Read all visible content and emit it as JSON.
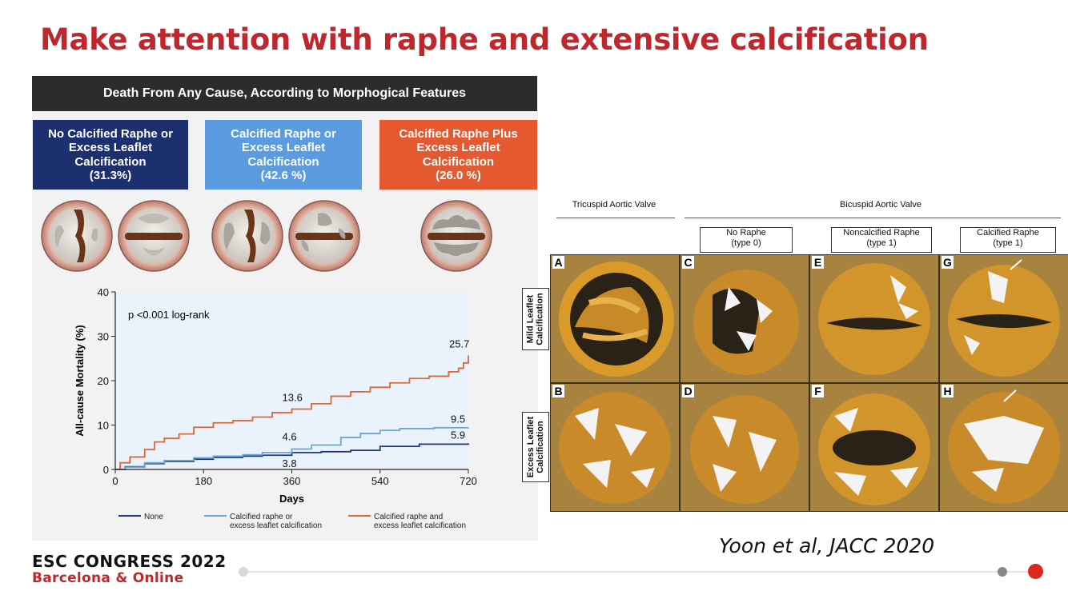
{
  "slide": {
    "title": "Make attention with raphe and extensive calcification",
    "citation": "Yoon et al, JACC 2020",
    "congress_name": "ESC CONGRESS 2022",
    "congress_location": "Barcelona & Online"
  },
  "panel": {
    "header": "Death From Any Cause, According to Morphogical Features",
    "categories": [
      {
        "lines": [
          "No Calcified Raphe or",
          "Excess Leaflet",
          "Calcification",
          "(31.3%)"
        ],
        "color": "#1c2f6e"
      },
      {
        "lines": [
          "Calcified Raphe or",
          "Excess Leaflet",
          "Calcification",
          "(42.6 %)"
        ],
        "color": "#5b9be0"
      },
      {
        "lines": [
          "Calcified Raphe Plus",
          "Excess Leaflet",
          "Calcification",
          "(26.0 %)"
        ],
        "color": "#e4592f"
      }
    ]
  },
  "chart_data": {
    "type": "line",
    "title": "",
    "annotation": "p <0.001 log-rank",
    "xlabel": "Days",
    "ylabel": "All-cause Mortality (%)",
    "xlim": [
      0,
      720
    ],
    "ylim": [
      0,
      40
    ],
    "xticks": [
      0,
      180,
      360,
      540,
      720
    ],
    "yticks": [
      0,
      10,
      20,
      30,
      40
    ],
    "series": [
      {
        "name": "None",
        "color": "#1f3a7a",
        "x": [
          0,
          20,
          60,
          100,
          160,
          200,
          260,
          300,
          360,
          420,
          480,
          540,
          620,
          720
        ],
        "y": [
          0,
          0.6,
          1.3,
          1.8,
          2.3,
          2.7,
          3.0,
          3.2,
          3.8,
          4.0,
          4.3,
          5.2,
          5.7,
          5.9
        ]
      },
      {
        "name": "Calcified raphe or excess leaflet calcification",
        "color": "#6fa6d8",
        "x": [
          0,
          20,
          60,
          100,
          160,
          200,
          260,
          300,
          360,
          400,
          460,
          500,
          540,
          580,
          650,
          720
        ],
        "y": [
          0,
          0.5,
          1.5,
          2.0,
          2.6,
          3.0,
          3.3,
          3.8,
          4.6,
          5.5,
          7.2,
          8.1,
          8.8,
          9.2,
          9.4,
          9.5
        ]
      },
      {
        "name": "Calcified raphe and excess leaflet calcification",
        "color": "#d9683b",
        "x": [
          0,
          10,
          30,
          60,
          80,
          100,
          130,
          160,
          200,
          240,
          280,
          320,
          360,
          400,
          440,
          480,
          520,
          560,
          600,
          640,
          680,
          700,
          710,
          720
        ],
        "y": [
          0,
          1.5,
          2.8,
          4.5,
          6.2,
          7.0,
          8.0,
          9.5,
          10.5,
          11.0,
          11.8,
          12.8,
          13.6,
          14.8,
          16.5,
          17.5,
          18.5,
          19.5,
          20.5,
          21.0,
          22.0,
          22.8,
          24.0,
          25.7
        ]
      }
    ],
    "data_labels": [
      {
        "text": "25.7",
        "x": 720,
        "y": 25.7,
        "color": "#111"
      },
      {
        "text": "13.6",
        "x": 360,
        "y": 13.6,
        "color": "#111"
      },
      {
        "text": "9.5",
        "x": 720,
        "y": 9.5,
        "color": "#111"
      },
      {
        "text": "5.9",
        "x": 720,
        "y": 5.9,
        "color": "#111"
      },
      {
        "text": "4.6",
        "x": 360,
        "y": 4.6,
        "color": "#111"
      },
      {
        "text": "3.8",
        "x": 360,
        "y": 3.8,
        "color": "#111"
      }
    ],
    "legend_position": "bottom",
    "grid": false
  },
  "ct_panel": {
    "group_tricuspid": "Tricuspid Aortic Valve",
    "group_bicuspid": "Bicuspid Aortic Valve",
    "columns": [
      {
        "lines": [
          "No Raphe",
          "(type 0)"
        ]
      },
      {
        "lines": [
          "Noncalcified Raphe",
          "(type 1)"
        ]
      },
      {
        "lines": [
          "Calcified Raphe",
          "(type 1)"
        ]
      }
    ],
    "rows": [
      {
        "lines": [
          "Mild Leaflet",
          "Calcification"
        ]
      },
      {
        "lines": [
          "Excess Leaflet",
          "Calcification"
        ]
      }
    ],
    "tiles": [
      "A",
      "C",
      "E",
      "G",
      "B",
      "D",
      "F",
      "H"
    ]
  }
}
